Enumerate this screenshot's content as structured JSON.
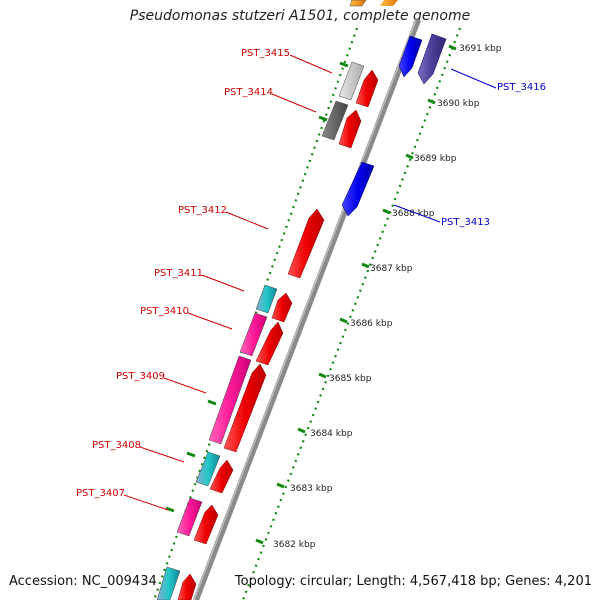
{
  "header": {
    "title": "Pseudomonas stutzeri A1501, complete genome"
  },
  "footer": {
    "accession": "Accession: NC_009434",
    "summary": "Topology: circular; Length: 4,567,418 bp; Genes: 4,201"
  },
  "colors": {
    "forward_cds": "#ff1a1a",
    "reverse_cds": "#1a1aee",
    "reverse_cds_alt": "#4a3f99",
    "pink_feature": "#ff2a9a",
    "cyan_feature": "#22c8c8",
    "grey_feature": "#bdbdbd",
    "dark_grey_feature": "#666666",
    "orange_feature": "#ff9900",
    "dotted_track": "#118811",
    "label_forward": "#d00000",
    "label_reverse": "#0000cc",
    "backbone": "#888888"
  },
  "ticks": [
    "3682 kbp",
    "3683 kbp",
    "3684 kbp",
    "3685 kbp",
    "3686 kbp",
    "3687 kbp",
    "3688 kbp",
    "3689 kbp",
    "3690 kbp",
    "3691 kbp"
  ],
  "gene_labels": {
    "forward": [
      "PST_3415",
      "PST_3414",
      "PST_3412",
      "PST_3411",
      "PST_3410",
      "PST_3409",
      "PST_3408",
      "PST_3407"
    ],
    "reverse": [
      "PST_3416",
      "PST_3413"
    ]
  }
}
